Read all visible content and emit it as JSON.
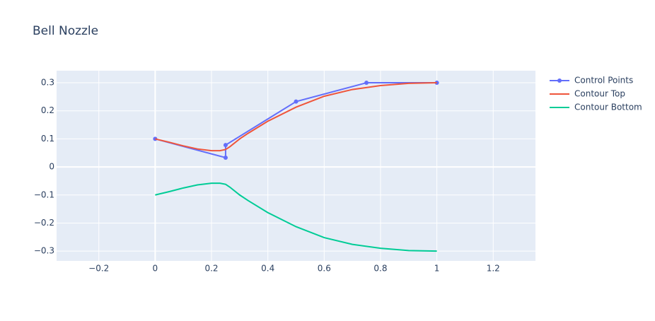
{
  "chart_data": {
    "type": "line",
    "title": "Bell Nozzle",
    "xlim": [
      -0.35,
      1.35
    ],
    "ylim": [
      -0.335,
      0.343
    ],
    "xticks": [
      {
        "value": -0.2,
        "label": "−0.2"
      },
      0,
      0.2,
      0.4,
      0.6,
      0.8,
      1,
      1.2
    ],
    "yticks": [
      {
        "value": -0.3,
        "label": "−0.3"
      },
      {
        "value": -0.2,
        "label": "−0.2"
      },
      {
        "value": -0.1,
        "label": "−0.1"
      },
      0,
      0.1,
      0.2,
      0.3
    ],
    "grid": true,
    "legend": "outside-right",
    "series": [
      {
        "name": "Control Points",
        "color": "#636efa",
        "markers": true,
        "x": [
          0,
          0.25,
          0.25,
          0.5,
          0.75,
          1
        ],
        "values": [
          0.1,
          0.033,
          0.078,
          0.233,
          0.3,
          0.3
        ]
      },
      {
        "name": "Contour Top",
        "color": "#ef553b",
        "markers": false,
        "x": [
          0,
          0.05,
          0.1,
          0.15,
          0.2,
          0.23,
          0.25,
          0.265,
          0.3,
          0.33,
          0.4,
          0.5,
          0.6,
          0.7,
          0.8,
          0.9,
          1
        ],
        "values": [
          0.1,
          0.088,
          0.075,
          0.064,
          0.058,
          0.058,
          0.062,
          0.072,
          0.1,
          0.12,
          0.163,
          0.213,
          0.252,
          0.276,
          0.29,
          0.298,
          0.3
        ]
      },
      {
        "name": "Contour Bottom",
        "color": "#00cc96",
        "markers": false,
        "x": [
          0,
          0.05,
          0.1,
          0.15,
          0.2,
          0.23,
          0.25,
          0.265,
          0.3,
          0.33,
          0.4,
          0.5,
          0.6,
          0.7,
          0.8,
          0.9,
          1
        ],
        "values": [
          -0.1,
          -0.088,
          -0.075,
          -0.064,
          -0.058,
          -0.058,
          -0.062,
          -0.072,
          -0.1,
          -0.12,
          -0.163,
          -0.213,
          -0.252,
          -0.276,
          -0.29,
          -0.298,
          -0.3
        ]
      }
    ]
  }
}
